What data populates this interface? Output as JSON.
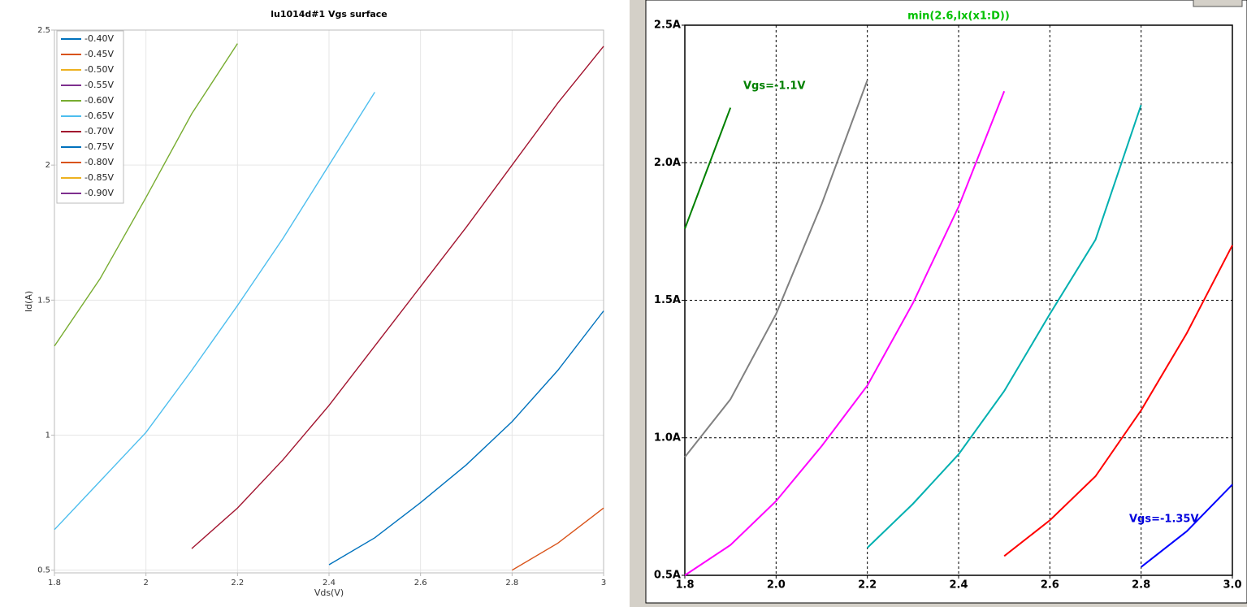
{
  "chart_data": [
    {
      "type": "line",
      "title": "lu1014d#1 Vgs surface",
      "x_label": "Vds(V)",
      "y_label": "Id(A)",
      "x": [
        1.8,
        1.9,
        2.0,
        2.1,
        2.2,
        2.3,
        2.4,
        2.5,
        2.6,
        2.7,
        2.8,
        2.9,
        3.0
      ],
      "xlim": [
        1.8,
        3
      ],
      "ylim": [
        0.49,
        2.5
      ],
      "xticks": [
        1.8,
        2,
        2.2,
        2.4,
        2.6,
        2.8,
        3
      ],
      "yticks": [
        0.5,
        1,
        1.5,
        2,
        2.5
      ],
      "grid": true,
      "legend": "upper left",
      "series": [
        {
          "name": "-0.40V",
          "color": "#0072bd",
          "values": [
            null,
            null,
            null,
            null,
            null,
            null,
            null,
            null,
            null,
            null,
            null,
            null,
            null
          ]
        },
        {
          "name": "-0.45V",
          "color": "#d95319",
          "values": [
            null,
            null,
            null,
            null,
            null,
            null,
            null,
            null,
            null,
            null,
            null,
            null,
            null
          ]
        },
        {
          "name": "-0.50V",
          "color": "#edb120",
          "values": [
            null,
            null,
            null,
            null,
            null,
            null,
            null,
            null,
            null,
            null,
            null,
            null,
            null
          ]
        },
        {
          "name": "-0.55V",
          "color": "#7e2f8e",
          "values": [
            null,
            null,
            null,
            null,
            null,
            null,
            null,
            null,
            null,
            null,
            null,
            null,
            null
          ]
        },
        {
          "name": "-0.60V",
          "color": "#77ac30",
          "values": [
            1.33,
            1.58,
            1.88,
            2.19,
            2.45,
            null,
            null,
            null,
            null,
            null,
            null,
            null,
            null
          ]
        },
        {
          "name": "-0.65V",
          "color": "#4dbeee",
          "values": [
            0.65,
            0.83,
            1.01,
            1.24,
            1.48,
            1.73,
            2.0,
            2.27,
            null,
            null,
            null,
            null,
            null
          ]
        },
        {
          "name": "-0.70V",
          "color": "#a2142f",
          "values": [
            null,
            null,
            null,
            0.58,
            0.73,
            0.91,
            1.11,
            1.33,
            1.55,
            1.77,
            2.0,
            2.23,
            2.44
          ]
        },
        {
          "name": "-0.75V",
          "color": "#0072bd",
          "values": [
            null,
            null,
            null,
            null,
            null,
            null,
            0.52,
            0.62,
            0.75,
            0.89,
            1.05,
            1.24,
            1.46
          ]
        },
        {
          "name": "-0.80V",
          "color": "#d95319",
          "values": [
            null,
            null,
            null,
            null,
            null,
            null,
            null,
            null,
            null,
            null,
            0.5,
            0.6,
            0.73
          ]
        },
        {
          "name": "-0.85V",
          "color": "#edb120",
          "values": [
            null,
            null,
            null,
            null,
            null,
            null,
            null,
            null,
            null,
            null,
            null,
            null,
            null
          ]
        },
        {
          "name": "-0.90V",
          "color": "#7e2f8e",
          "values": [
            null,
            null,
            null,
            null,
            null,
            null,
            null,
            null,
            null,
            null,
            null,
            null,
            null
          ]
        }
      ]
    },
    {
      "type": "line",
      "title": "min(2.6,Ix(x1:D))",
      "annotations": [
        "Vgs=-1.1V",
        "Vgs=-1.35V"
      ],
      "x": [
        1.8,
        1.9,
        2.0,
        2.1,
        2.2,
        2.3,
        2.4,
        2.5,
        2.6,
        2.7,
        2.8,
        2.9,
        3.0
      ],
      "xlim": [
        1.8,
        3.0
      ],
      "ylim": [
        0.5,
        2.5
      ],
      "xticks": [
        1.8,
        {
          "value": 2,
          "label": "2.0"
        },
        2.2,
        2.4,
        2.6,
        2.8,
        {
          "value": 3,
          "label": "3.0"
        }
      ],
      "yticks": [
        {
          "value": 0.5,
          "label": "0.5A"
        },
        {
          "value": 1,
          "label": "1.0A"
        },
        {
          "value": 1.5,
          "label": "1.5A"
        },
        {
          "value": 2,
          "label": "2.0A"
        },
        {
          "value": 2.5,
          "label": "2.5A"
        }
      ],
      "grid": true,
      "series": [
        {
          "color": "#008000",
          "values": [
            1.76,
            2.2,
            null,
            null,
            null,
            null,
            null,
            null,
            null,
            null,
            null,
            null,
            null
          ]
        },
        {
          "color": "#808080",
          "values": [
            0.93,
            1.14,
            1.45,
            1.85,
            2.3,
            null,
            null,
            null,
            null,
            null,
            null,
            null,
            null
          ]
        },
        {
          "color": "#ff00ff",
          "values": [
            0.5,
            0.61,
            0.77,
            0.97,
            1.19,
            1.49,
            1.84,
            2.26,
            null,
            null,
            null,
            null,
            null
          ]
        },
        {
          "color": "#00b0b0",
          "values": [
            null,
            null,
            null,
            null,
            0.6,
            0.76,
            0.94,
            1.17,
            1.45,
            1.72,
            2.21,
            null,
            null
          ]
        },
        {
          "color": "#ff0000",
          "values": [
            null,
            null,
            null,
            null,
            null,
            null,
            null,
            0.57,
            0.7,
            0.86,
            1.1,
            1.38,
            1.7
          ]
        },
        {
          "color": "#0000ff",
          "values": [
            null,
            null,
            null,
            null,
            null,
            null,
            null,
            null,
            null,
            null,
            0.53,
            0.66,
            0.83
          ]
        }
      ]
    }
  ]
}
